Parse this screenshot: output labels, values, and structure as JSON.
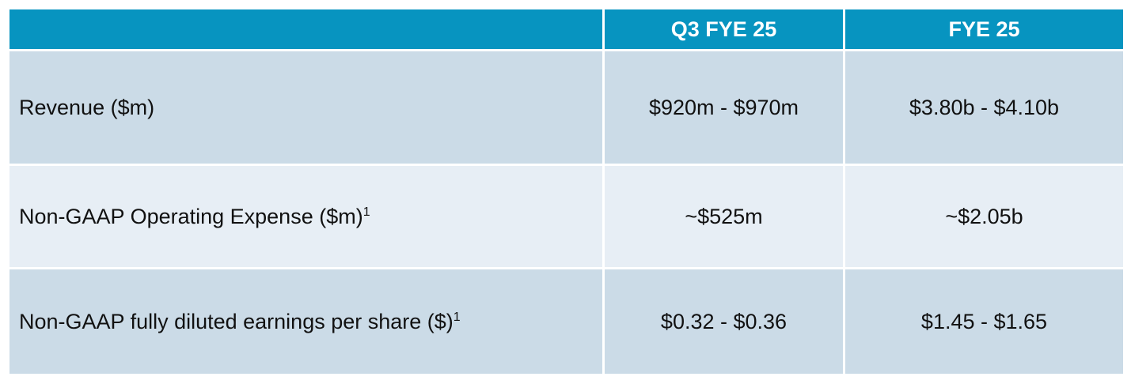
{
  "table": {
    "headers": [
      "",
      "Q3 FYE 25",
      "FYE 25"
    ],
    "rows": [
      {
        "metric": "Revenue ($m)",
        "footnote": "",
        "q3": "$920m - $970m",
        "fy": "$3.80b - $4.10b"
      },
      {
        "metric": "Non-GAAP Operating Expense ($m)",
        "footnote": "1",
        "q3": "~$525m",
        "fy": "~$2.05b"
      },
      {
        "metric": "Non-GAAP fully diluted earnings per share ($)",
        "footnote": "1",
        "q3": "$0.32 - $0.36",
        "fy": "$1.45 - $1.65"
      }
    ]
  },
  "colors": {
    "header_bg": "#0794c0",
    "row_dark_bg": "#cbdbe7",
    "row_light_bg": "#e7eef5"
  }
}
